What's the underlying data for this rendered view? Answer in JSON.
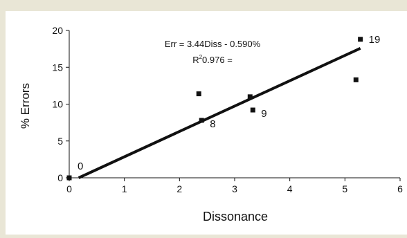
{
  "chart_data": {
    "type": "scatter",
    "title": "",
    "xlabel": "Dissonance",
    "ylabel": "% Errors",
    "xlim": [
      0,
      6
    ],
    "ylim": [
      0,
      20
    ],
    "x_ticks": [
      0,
      1,
      2,
      3,
      4,
      5,
      6
    ],
    "y_ticks": [
      0,
      5,
      10,
      15,
      20
    ],
    "grid": false,
    "legend": "none",
    "series": [
      {
        "points": [
          {
            "x": 0.0,
            "y": 0.0
          },
          {
            "x": 2.35,
            "y": 11.4
          },
          {
            "x": 2.4,
            "y": 7.8
          },
          {
            "x": 3.28,
            "y": 11.0
          },
          {
            "x": 3.33,
            "y": 9.2
          },
          {
            "x": 5.2,
            "y": 13.3
          },
          {
            "x": 5.28,
            "y": 18.8
          }
        ]
      }
    ],
    "point_labels": [
      {
        "x": 0.0,
        "y": 0.0,
        "text": "0"
      },
      {
        "x": 2.4,
        "y": 7.8,
        "text": "8"
      },
      {
        "x": 3.33,
        "y": 9.2,
        "text": "9"
      },
      {
        "x": 5.28,
        "y": 18.8,
        "text": "19"
      }
    ],
    "trendline": {
      "slope": 3.44,
      "intercept": -0.59,
      "x_range": [
        0.0,
        5.28
      ]
    },
    "annotations": {
      "equation": "Err = 3.44Diss - 0.590%",
      "r2_prefix": "R",
      "r2_sup": "2",
      "r2_rest": "0.976 ="
    },
    "colors": {
      "background": "#e9e6d6",
      "panel": "#ffffff",
      "marks": "#111111"
    }
  }
}
